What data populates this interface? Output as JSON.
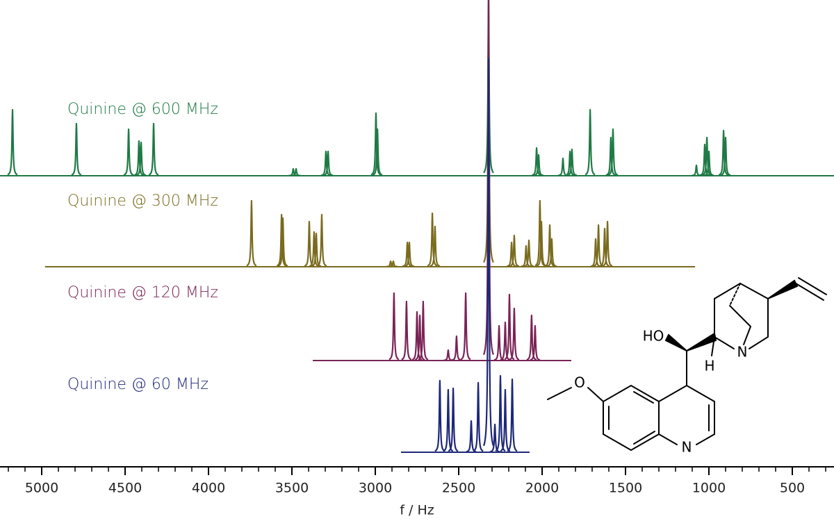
{
  "chart_data": {
    "type": "spectrum",
    "xlabel": "f / Hz",
    "xlim": [
      5250,
      250
    ],
    "xticks": [
      5000,
      4500,
      4000,
      3500,
      3000,
      2500,
      2000,
      1500,
      1000,
      500
    ],
    "xminorticks": [
      5200,
      5100,
      4900,
      4800,
      4700,
      4600,
      4400,
      4300,
      4200,
      4100,
      3900,
      3800,
      3700,
      3600,
      3400,
      3300,
      3200,
      3100,
      2900,
      2800,
      2700,
      2600,
      2400,
      2300,
      2200,
      2100,
      1900,
      1800,
      1700,
      1600,
      1400,
      1300,
      1200,
      1100,
      900,
      800,
      700,
      600,
      400,
      300
    ],
    "annotations": [
      "HO",
      "H",
      "N",
      "N"
    ],
    "series": [
      {
        "name": "Quinine @ 600 MHz",
        "color": "#1f7a45",
        "xrange": [
          5250,
          250
        ],
        "x": [
          5175,
          4792,
          4479,
          4417,
          4404,
          4329,
          3492,
          3475,
          3296,
          3283,
          2996,
          2987,
          2321,
          2033,
          2021,
          1875,
          1833,
          1821,
          1712,
          1588,
          1575,
          1075,
          1025,
          1012,
          1000,
          912,
          900
        ],
        "values": [
          95,
          75,
          67,
          50,
          48,
          75,
          10,
          10,
          35,
          35,
          90,
          67,
          260,
          40,
          30,
          25,
          35,
          38,
          95,
          55,
          67,
          15,
          45,
          55,
          35,
          65,
          55
        ]
      },
      {
        "name": "Quinine @ 300 MHz",
        "color": "#7a6b1e",
        "xrange": [
          4980,
          1083
        ],
        "x": [
          3742,
          3562,
          3554,
          3396,
          3367,
          3354,
          3321,
          2908,
          2892,
          2808,
          2796,
          2658,
          2642,
          2321,
          2183,
          2167,
          2096,
          2079,
          2013,
          2004,
          1954,
          1942,
          1679,
          1662,
          1625,
          1608
        ],
        "values": [
          95,
          75,
          70,
          65,
          50,
          48,
          75,
          8,
          8,
          35,
          35,
          77,
          58,
          390,
          35,
          45,
          30,
          38,
          95,
          65,
          60,
          40,
          40,
          60,
          55,
          65
        ]
      },
      {
        "name": "Quinine @ 120 MHz",
        "color": "#7a2356",
        "xrange": [
          3375,
          1825
        ],
        "x": [
          2888,
          2813,
          2750,
          2733,
          2713,
          2563,
          2513,
          2458,
          2321,
          2258,
          2221,
          2196,
          2167,
          2063,
          2042
        ],
        "values": [
          97,
          85,
          70,
          65,
          85,
          15,
          35,
          97,
          520,
          50,
          55,
          95,
          75,
          65,
          50
        ]
      },
      {
        "name": "Quinine @ 60 MHz",
        "color": "#1e2878",
        "xrange": [
          2846,
          2075
        ],
        "x": [
          2613,
          2563,
          2533,
          2425,
          2383,
          2321,
          2283,
          2250,
          2221,
          2179
        ],
        "values": [
          103,
          90,
          92,
          45,
          100,
          566,
          40,
          110,
          90,
          105
        ]
      }
    ]
  }
}
